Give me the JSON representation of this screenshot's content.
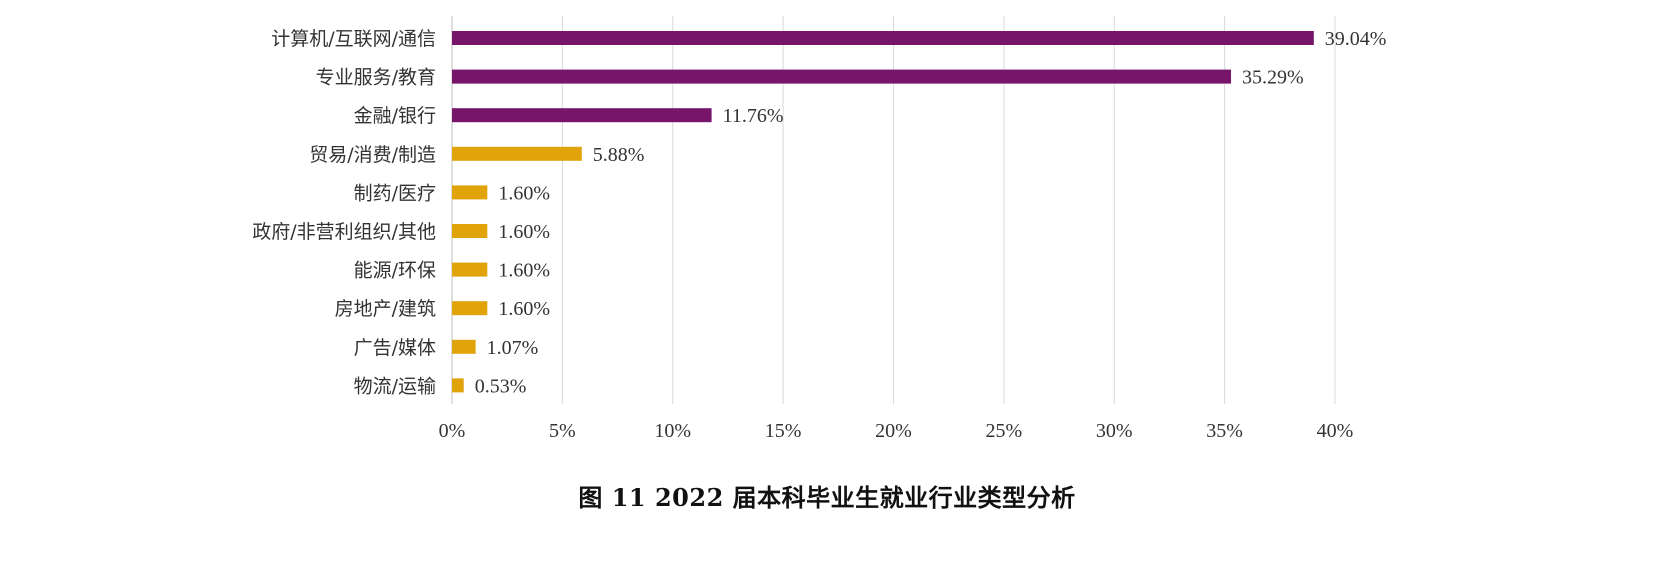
{
  "caption": "图 11  2022 届本科毕业生就业行业类型分析",
  "colors": {
    "primary": "#77156b",
    "secondary": "#e0a30a",
    "grid": "#d9d9d9",
    "text": "#333333"
  },
  "chart_data": {
    "type": "bar",
    "orientation": "horizontal",
    "categories": [
      "计算机/互联网/通信",
      "专业服务/教育",
      "金融/银行",
      "贸易/消费/制造",
      "制药/医疗",
      "政府/非营利组织/其他",
      "能源/环保",
      "房地产/建筑",
      "广告/媒体",
      "物流/运输"
    ],
    "values": [
      39.04,
      35.29,
      11.76,
      5.88,
      1.6,
      1.6,
      1.6,
      1.6,
      1.07,
      0.53
    ],
    "value_labels": [
      "39.04%",
      "35.29%",
      "11.76%",
      "5.88%",
      "1.60%",
      "1.60%",
      "1.60%",
      "1.60%",
      "1.07%",
      "0.53%"
    ],
    "bar_colors": [
      "#77156b",
      "#77156b",
      "#77156b",
      "#e0a30a",
      "#e0a30a",
      "#e0a30a",
      "#e0a30a",
      "#e0a30a",
      "#e0a30a",
      "#e0a30a"
    ],
    "xlim": [
      0,
      40
    ],
    "xticks": [
      0,
      5,
      10,
      15,
      20,
      25,
      30,
      35,
      40
    ],
    "xtick_labels": [
      "0%",
      "5%",
      "10%",
      "15%",
      "20%",
      "25%",
      "30%",
      "35%",
      "40%"
    ],
    "grid": "vertical",
    "legend": "none"
  }
}
